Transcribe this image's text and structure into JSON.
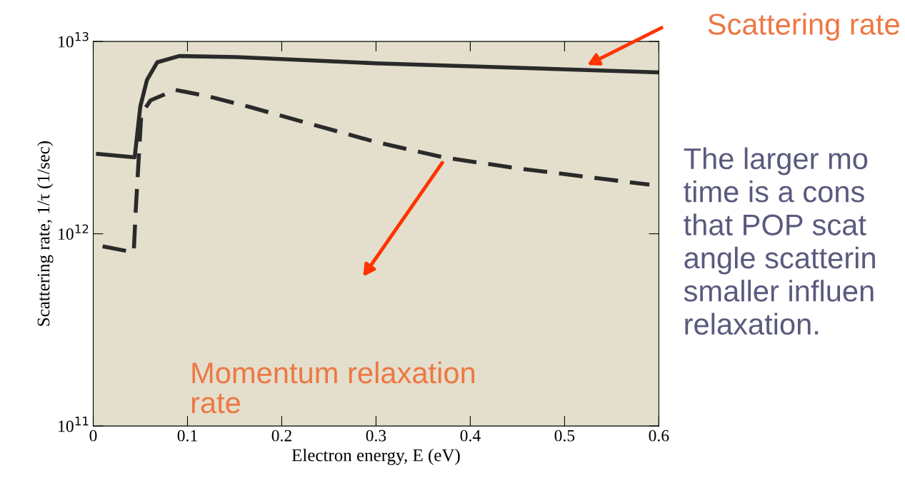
{
  "chart_data": {
    "type": "line",
    "xlabel": "Electron energy, E (eV)",
    "ylabel": "Scattering rate, 1/τ (1/sec)",
    "log": "y",
    "xlim": [
      0,
      0.6
    ],
    "xticks": [
      0,
      0.1,
      0.2,
      0.3,
      0.4,
      0.5,
      0.6
    ],
    "ylim": [
      100000000000.0,
      10000000000000.0
    ],
    "yticks": [
      {
        "value": 100000000000.0,
        "label": "10$^{11}$"
      },
      {
        "value": 1000000000000.0,
        "label": "10$^{12}$"
      },
      {
        "value": 10000000000000.0,
        "label": "10$^{13}$"
      }
    ],
    "grid": false,
    "legend": false,
    "series": [
      {
        "color": "#2a2a2a",
        "line_style": "solid",
        "x": [
          0.005,
          0.044,
          0.047,
          0.05,
          0.057,
          0.068,
          0.091,
          0.152,
          0.3,
          0.45,
          0.6
        ],
        "values": [
          2600000000000.0,
          2500000000000.0,
          3400000000000.0,
          4600000000000.0,
          6300000000000.0,
          7800000000000.0,
          8400000000000.0,
          8300000000000.0,
          7700000000000.0,
          7300000000000.0,
          6900000000000.0
        ]
      },
      {
        "color": "#2a2a2a",
        "line_style": "dashed",
        "x": [
          0.01,
          0.043,
          0.045,
          0.051,
          0.061,
          0.087,
          0.121,
          0.167,
          0.22,
          0.3,
          0.371,
          0.447,
          0.59
        ],
        "values": [
          860000000000.0,
          800000000000.0,
          1300000000000.0,
          4200000000000.0,
          4950000000000.0,
          5600000000000.0,
          5200000000000.0,
          4550000000000.0,
          3850000000000.0,
          3000000000000.0,
          2500000000000.0,
          2200000000000.0,
          1800000000000.0
        ]
      }
    ],
    "annotations": [
      "Scattering rate",
      "Momentum relaxation\nrate",
      "The larger mo\ntime is a cons\nthat POP scat\nangle scatterin\nsmaller influen\nrelaxation."
    ]
  }
}
